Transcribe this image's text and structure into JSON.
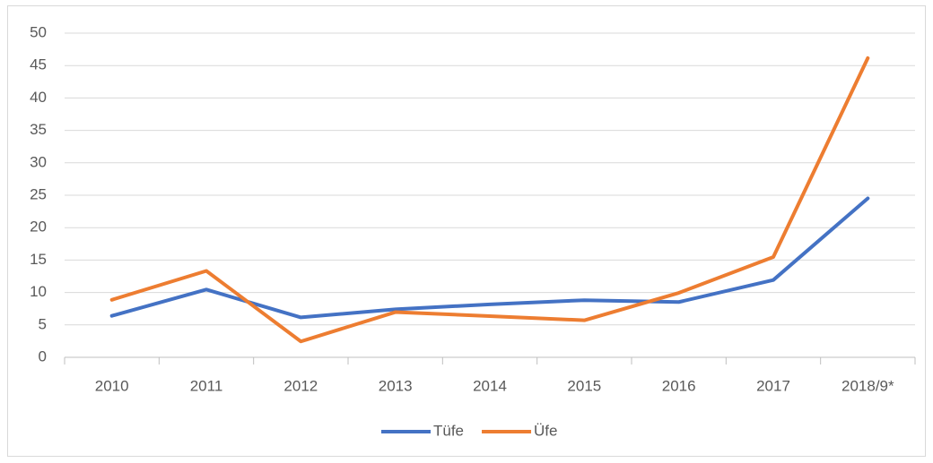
{
  "chart_data": {
    "type": "line",
    "categories": [
      "2010",
      "2011",
      "2012",
      "2013",
      "2014",
      "2015",
      "2016",
      "2017",
      "2018/9*"
    ],
    "series": [
      {
        "name": "Tüfe",
        "color": "#4472c4",
        "values": [
          6.4,
          10.45,
          6.16,
          7.4,
          8.17,
          8.81,
          8.53,
          11.92,
          24.52
        ]
      },
      {
        "name": "Üfe",
        "color": "#ed7d31",
        "values": [
          8.87,
          13.33,
          2.45,
          6.97,
          6.36,
          5.71,
          9.94,
          15.47,
          46.15
        ]
      }
    ],
    "ylim": [
      0,
      50
    ],
    "yticks": [
      0,
      5,
      10,
      15,
      20,
      25,
      30,
      35,
      40,
      45,
      50
    ],
    "grid": true,
    "legend": "bottom"
  }
}
